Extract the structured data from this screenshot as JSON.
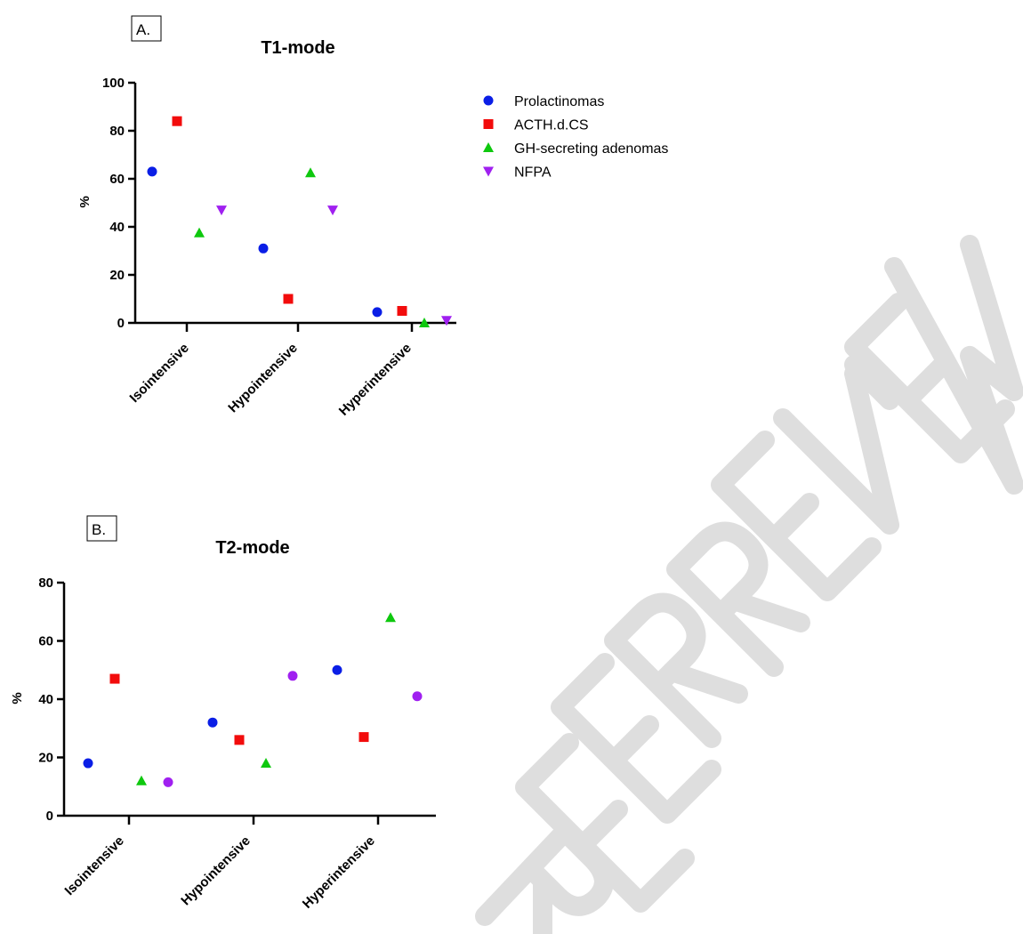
{
  "chart_data": [
    {
      "type": "scatter",
      "panel_label": "A.",
      "title": "T1-mode",
      "xlabel": "",
      "ylabel": "%",
      "ylim": [
        0,
        100
      ],
      "yticks": [
        0,
        20,
        40,
        60,
        80,
        100
      ],
      "categories": [
        "Isointensive",
        "Hypointensive",
        "Hyperintensive"
      ],
      "series": [
        {
          "name": "Prolactinomas",
          "marker": "circle",
          "color": "#0a1ee6",
          "values": [
            63,
            31,
            4.5
          ]
        },
        {
          "name": "ACTH.d.CS",
          "marker": "square",
          "color": "#f20c0c",
          "values": [
            84,
            10,
            5
          ]
        },
        {
          "name": "GH-secreting adenomas",
          "marker": "triangle-up",
          "color": "#0ec80e",
          "values": [
            37.5,
            62.5,
            0
          ]
        },
        {
          "name": "NFPA",
          "marker": "triangle-down",
          "color": "#a020f0",
          "values": [
            47,
            47,
            1
          ]
        }
      ],
      "legend_position": "right"
    },
    {
      "type": "scatter",
      "panel_label": "B.",
      "title": "T2-mode",
      "xlabel": "",
      "ylabel": "%",
      "ylim": [
        0,
        80
      ],
      "yticks": [
        0,
        20,
        40,
        60,
        80
      ],
      "categories": [
        "Isointensive",
        "Hypointensive",
        "Hyperintensive"
      ],
      "series": [
        {
          "marker": "circle",
          "color": "#0a1ee6",
          "values": [
            18,
            32,
            50
          ]
        },
        {
          "marker": "square",
          "color": "#f20c0c",
          "values": [
            47,
            26,
            27
          ]
        },
        {
          "marker": "triangle-up",
          "color": "#0ec80e",
          "values": [
            12,
            18,
            68
          ]
        },
        {
          "marker": "circle",
          "color": "#a020f0",
          "values": [
            11.5,
            48,
            41
          ]
        }
      ]
    }
  ]
}
